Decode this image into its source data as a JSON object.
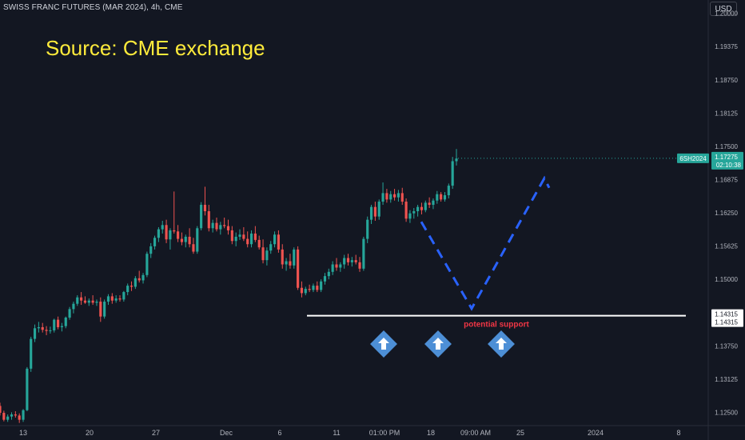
{
  "header": {
    "symbol_title": "SWISS FRANC FUTURES (MAR 2024), 4h, CME"
  },
  "annotation": {
    "source_text": "Source: CME exchange",
    "support_label": "potential support"
  },
  "currency_button": {
    "label": "USD"
  },
  "price_axis": {
    "ticks": [
      "1.20000",
      "1.19375",
      "1.18750",
      "1.18125",
      "1.17500",
      "1.16875",
      "1.16250",
      "1.15625",
      "1.15000",
      "1.14375",
      "1.13750",
      "1.13125",
      "1.12500"
    ]
  },
  "last_price": {
    "ticker": "6SH2024",
    "price": "1.17275",
    "countdown": "02:10:38"
  },
  "support_level": {
    "price_a": "1.14315",
    "price_b": "1.14315"
  },
  "time_axis": {
    "labels": [
      "13",
      "20",
      "27",
      "Dec",
      "6",
      "11",
      "01:00 PM",
      "18",
      "09:00 AM",
      "25",
      "2024",
      "8"
    ]
  },
  "colors": {
    "background": "#131722",
    "up": "#26a69a",
    "down": "#ef5350",
    "support": "#ffffff",
    "projection": "#2962ff",
    "annotation": "#ffeb3b",
    "support_text": "#f23645",
    "arrow_marker": "#4d8fd6"
  },
  "chart_data": {
    "type": "candlestick",
    "symbol": "6SH2024",
    "interval": "4h",
    "y_range": [
      1.1225,
      1.2025
    ],
    "support_price": 1.14315,
    "last_close": 1.17275,
    "candles": [
      [
        1.1262,
        1.1268,
        1.1244,
        1.1249
      ],
      [
        1.1249,
        1.1253,
        1.1233,
        1.1236
      ],
      [
        1.1236,
        1.1246,
        1.1232,
        1.1242
      ],
      [
        1.1242,
        1.125,
        1.1236,
        1.1246
      ],
      [
        1.1246,
        1.1252,
        1.124,
        1.1244
      ],
      [
        1.1244,
        1.1248,
        1.123,
        1.1236
      ],
      [
        1.1236,
        1.1256,
        1.1232,
        1.1254
      ],
      [
        1.1254,
        1.1335,
        1.1252,
        1.1332
      ],
      [
        1.1332,
        1.1392,
        1.1326,
        1.1388
      ],
      [
        1.1388,
        1.1415,
        1.1382,
        1.1408
      ],
      [
        1.1408,
        1.142,
        1.14,
        1.141
      ],
      [
        1.141,
        1.1418,
        1.14,
        1.1405
      ],
      [
        1.1405,
        1.1412,
        1.1395,
        1.1403
      ],
      [
        1.1403,
        1.1411,
        1.1398,
        1.1404
      ],
      [
        1.1404,
        1.1426,
        1.14,
        1.1424
      ],
      [
        1.1424,
        1.143,
        1.1406,
        1.141
      ],
      [
        1.141,
        1.1418,
        1.1402,
        1.1412
      ],
      [
        1.1412,
        1.143,
        1.1408,
        1.1428
      ],
      [
        1.1428,
        1.1448,
        1.1424,
        1.1444
      ],
      [
        1.1444,
        1.1458,
        1.1436,
        1.1454
      ],
      [
        1.1454,
        1.147,
        1.145,
        1.1466
      ],
      [
        1.1466,
        1.1476,
        1.1452,
        1.146
      ],
      [
        1.146,
        1.1468,
        1.1454,
        1.1456
      ],
      [
        1.1456,
        1.1464,
        1.145,
        1.146
      ],
      [
        1.146,
        1.147,
        1.1452,
        1.1456
      ],
      [
        1.1456,
        1.1462,
        1.145,
        1.1458
      ],
      [
        1.1458,
        1.1466,
        1.142,
        1.143
      ],
      [
        1.143,
        1.1462,
        1.1426,
        1.1458
      ],
      [
        1.1458,
        1.1472,
        1.1452,
        1.1468
      ],
      [
        1.1468,
        1.1474,
        1.1454,
        1.146
      ],
      [
        1.146,
        1.147,
        1.1456,
        1.1464
      ],
      [
        1.1464,
        1.147,
        1.1458,
        1.1462
      ],
      [
        1.1462,
        1.1478,
        1.1458,
        1.1476
      ],
      [
        1.1476,
        1.1492,
        1.147,
        1.1488
      ],
      [
        1.1488,
        1.1496,
        1.1478,
        1.1486
      ],
      [
        1.1486,
        1.1506,
        1.1482,
        1.1502
      ],
      [
        1.1502,
        1.1516,
        1.1494,
        1.1498
      ],
      [
        1.1498,
        1.1512,
        1.1492,
        1.1508
      ],
      [
        1.1508,
        1.1552,
        1.1504,
        1.1548
      ],
      [
        1.1548,
        1.1568,
        1.154,
        1.1562
      ],
      [
        1.1562,
        1.1582,
        1.1556,
        1.1578
      ],
      [
        1.1578,
        1.1598,
        1.157,
        1.1594
      ],
      [
        1.1594,
        1.161,
        1.1586,
        1.1602
      ],
      [
        1.1602,
        1.1612,
        1.1568,
        1.1575
      ],
      [
        1.1575,
        1.1596,
        1.1556,
        1.1592
      ],
      [
        1.1592,
        1.1665,
        1.1586,
        1.159
      ],
      [
        1.159,
        1.1602,
        1.157,
        1.1576
      ],
      [
        1.1576,
        1.1588,
        1.1564,
        1.157
      ],
      [
        1.157,
        1.1584,
        1.156,
        1.158
      ],
      [
        1.158,
        1.1596,
        1.156,
        1.1566
      ],
      [
        1.1566,
        1.1578,
        1.1548,
        1.1552
      ],
      [
        1.1552,
        1.16,
        1.1548,
        1.1596
      ],
      [
        1.1596,
        1.1645,
        1.1592,
        1.164
      ],
      [
        1.164,
        1.1674,
        1.162,
        1.1628
      ],
      [
        1.1628,
        1.164,
        1.159,
        1.1596
      ],
      [
        1.1596,
        1.1612,
        1.1588,
        1.1606
      ],
      [
        1.1606,
        1.1616,
        1.159,
        1.1594
      ],
      [
        1.1594,
        1.1608,
        1.1584,
        1.1602
      ],
      [
        1.1602,
        1.1616,
        1.1596,
        1.16
      ],
      [
        1.16,
        1.1612,
        1.1584,
        1.1592
      ],
      [
        1.1592,
        1.16,
        1.1566,
        1.1572
      ],
      [
        1.1572,
        1.1588,
        1.1562,
        1.158
      ],
      [
        1.158,
        1.1594,
        1.1574,
        1.1584
      ],
      [
        1.1584,
        1.1598,
        1.1572,
        1.1576
      ],
      [
        1.1576,
        1.159,
        1.156,
        1.1566
      ],
      [
        1.1566,
        1.1592,
        1.156,
        1.1586
      ],
      [
        1.1586,
        1.16,
        1.157,
        1.1574
      ],
      [
        1.1574,
        1.1582,
        1.1556,
        1.156
      ],
      [
        1.156,
        1.1575,
        1.153,
        1.1536
      ],
      [
        1.1536,
        1.156,
        1.1526,
        1.1554
      ],
      [
        1.1554,
        1.1572,
        1.1548,
        1.1566
      ],
      [
        1.1566,
        1.159,
        1.156,
        1.1584
      ],
      [
        1.1584,
        1.1592,
        1.155,
        1.1556
      ],
      [
        1.1556,
        1.1566,
        1.152,
        1.1528
      ],
      [
        1.1528,
        1.154,
        1.1516,
        1.1534
      ],
      [
        1.1534,
        1.1548,
        1.152,
        1.1526
      ],
      [
        1.1526,
        1.156,
        1.152,
        1.1556
      ],
      [
        1.1556,
        1.1562,
        1.148,
        1.1484
      ],
      [
        1.1484,
        1.1496,
        1.1466,
        1.1474
      ],
      [
        1.1474,
        1.1486,
        1.147,
        1.1482
      ],
      [
        1.1482,
        1.149,
        1.1476,
        1.148
      ],
      [
        1.148,
        1.1492,
        1.1476,
        1.1488
      ],
      [
        1.1488,
        1.1496,
        1.1476,
        1.148
      ],
      [
        1.148,
        1.15,
        1.1476,
        1.1496
      ],
      [
        1.1496,
        1.1512,
        1.149,
        1.1506
      ],
      [
        1.1506,
        1.152,
        1.15,
        1.1514
      ],
      [
        1.1514,
        1.1534,
        1.1508,
        1.1528
      ],
      [
        1.1528,
        1.154,
        1.1516,
        1.1522
      ],
      [
        1.1522,
        1.1532,
        1.1514,
        1.1528
      ],
      [
        1.1528,
        1.1546,
        1.152,
        1.154
      ],
      [
        1.154,
        1.1548,
        1.1526,
        1.1532
      ],
      [
        1.1532,
        1.1542,
        1.1524,
        1.1536
      ],
      [
        1.1536,
        1.1546,
        1.1528,
        1.1532
      ],
      [
        1.1532,
        1.1542,
        1.1514,
        1.152
      ],
      [
        1.152,
        1.158,
        1.1516,
        1.1576
      ],
      [
        1.1576,
        1.1618,
        1.1568,
        1.1612
      ],
      [
        1.1612,
        1.164,
        1.1604,
        1.1636
      ],
      [
        1.1636,
        1.1646,
        1.161,
        1.1618
      ],
      [
        1.1618,
        1.165,
        1.1612,
        1.1646
      ],
      [
        1.1646,
        1.1682,
        1.164,
        1.1662
      ],
      [
        1.1662,
        1.167,
        1.1644,
        1.165
      ],
      [
        1.165,
        1.1666,
        1.1644,
        1.166
      ],
      [
        1.166,
        1.167,
        1.1648,
        1.1654
      ],
      [
        1.1654,
        1.1668,
        1.1646,
        1.1662
      ],
      [
        1.1662,
        1.1672,
        1.164,
        1.1646
      ],
      [
        1.1646,
        1.1652,
        1.1608,
        1.1614
      ],
      [
        1.1614,
        1.163,
        1.1606,
        1.1624
      ],
      [
        1.1624,
        1.1634,
        1.1614,
        1.1628
      ],
      [
        1.1628,
        1.164,
        1.1618,
        1.1636
      ],
      [
        1.1636,
        1.1644,
        1.1622,
        1.163
      ],
      [
        1.163,
        1.1648,
        1.1626,
        1.1644
      ],
      [
        1.1644,
        1.1654,
        1.1634,
        1.164
      ],
      [
        1.164,
        1.1652,
        1.1632,
        1.1648
      ],
      [
        1.1648,
        1.1666,
        1.1642,
        1.166
      ],
      [
        1.166,
        1.1664,
        1.1646,
        1.165
      ],
      [
        1.165,
        1.1664,
        1.1646,
        1.1658
      ],
      [
        1.1658,
        1.168,
        1.1652,
        1.1676
      ],
      [
        1.1676,
        1.173,
        1.167,
        1.1722
      ],
      [
        1.1722,
        1.1745,
        1.1714,
        1.1727
      ]
    ],
    "projection_path": [
      [
        1.1608,
        0
      ],
      [
        1.1445,
        1
      ],
      [
        1.169,
        2
      ],
      [
        1.1672,
        3
      ]
    ]
  }
}
